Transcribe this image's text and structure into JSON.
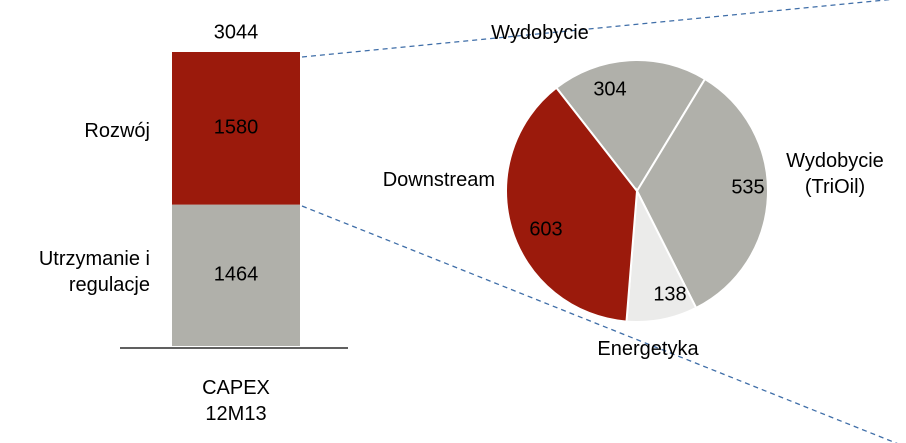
{
  "chart_data": [
    {
      "type": "stacked-bar",
      "categories": [
        "CAPEX 12M13"
      ],
      "series": [
        {
          "name": "Utrzymanie i regulacje",
          "color": "#b0b0aa",
          "values": [
            1464
          ]
        },
        {
          "name": "Rozwój",
          "color": "#9b1a0c",
          "values": [
            1580
          ]
        }
      ],
      "total": 3044
    },
    {
      "type": "pie",
      "categories": [
        "Wydobycie",
        "Wydobycie (TriOil)",
        "Energetyka",
        "Downstream"
      ],
      "values": [
        304,
        535,
        138,
        603
      ],
      "colors": [
        "#b0b0aa",
        "#b0b0aa",
        "#ebebea",
        "#9b1a0c"
      ]
    }
  ]
}
